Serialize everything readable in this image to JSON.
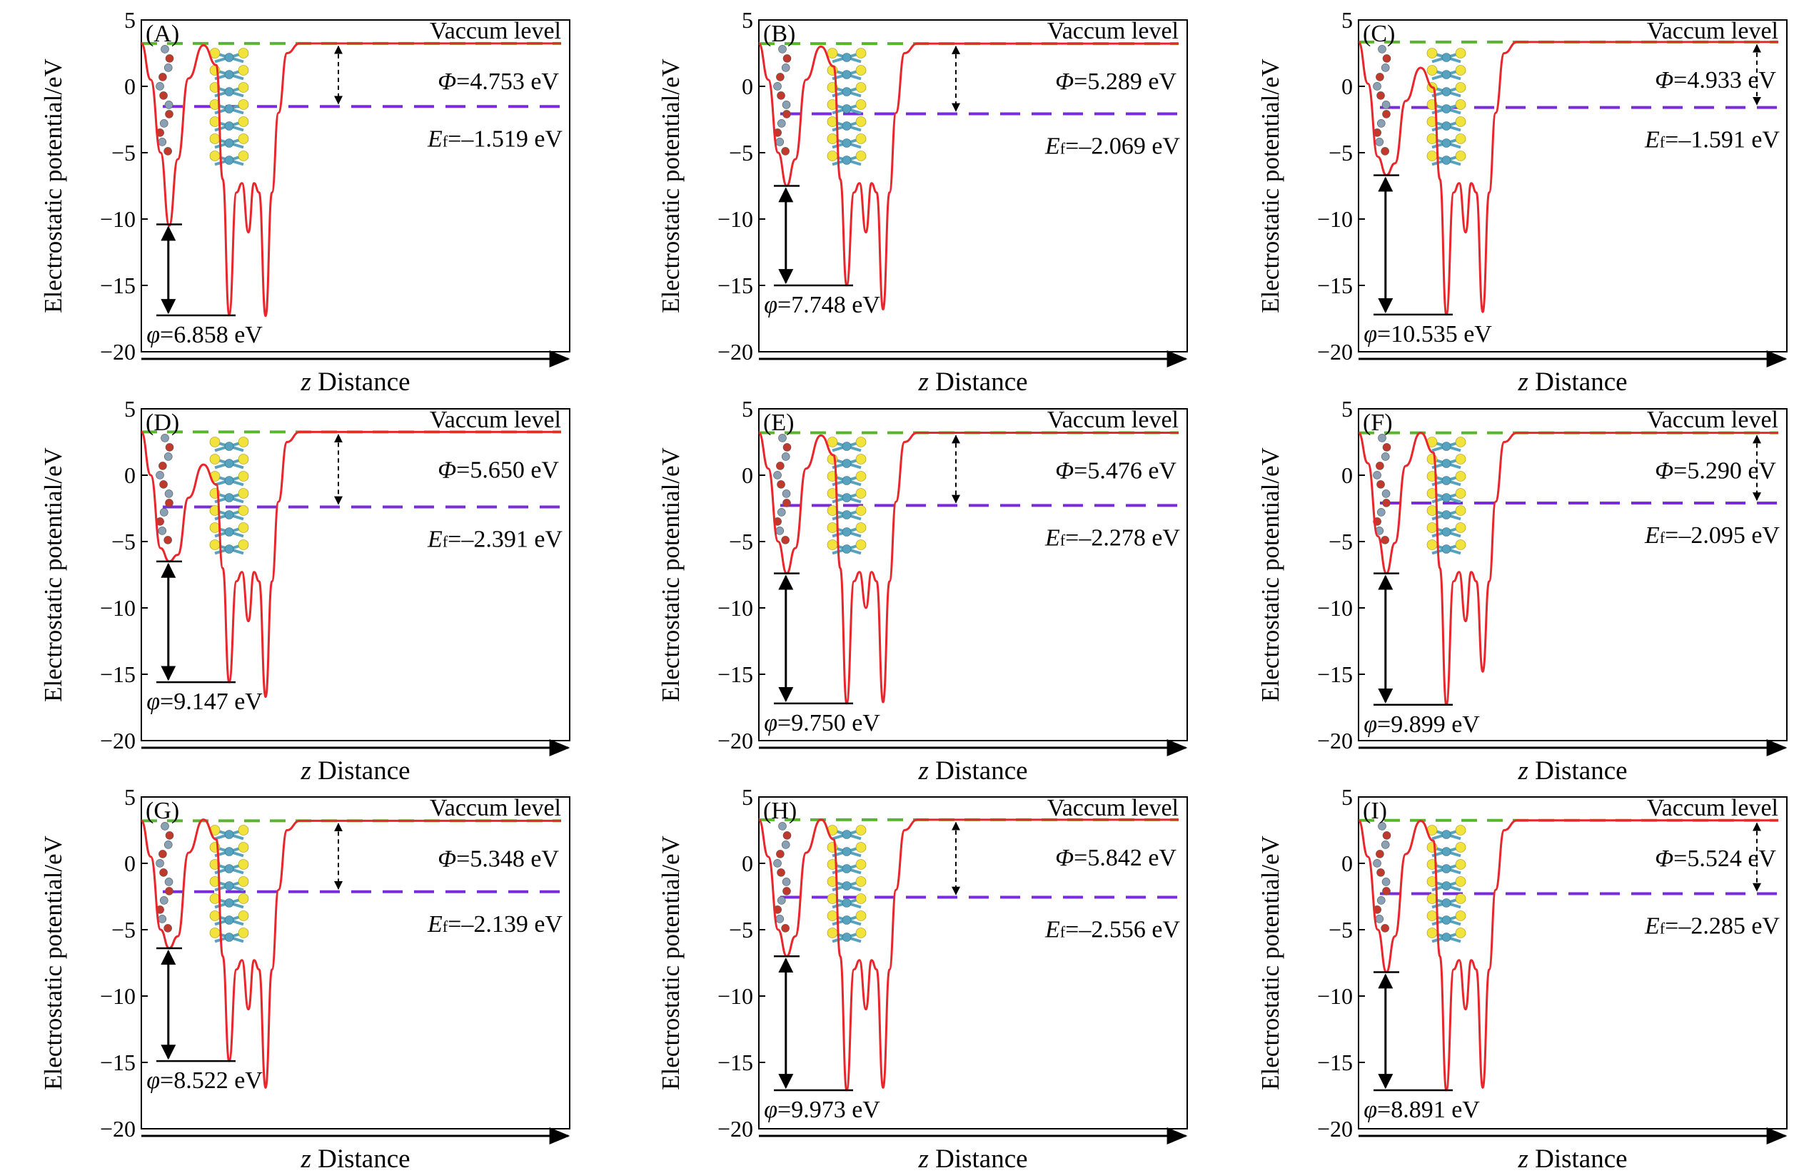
{
  "figure": {
    "y_axis_label": "Electrostatic potential/eV",
    "x_axis_label_prefix": "z",
    "x_axis_label": "Distance",
    "vacuum_label": "Vaccum level",
    "phi_label": "Φ",
    "ef_label": "E",
    "ef_subscript": "f",
    "wf_label": "φ",
    "unit": "eV"
  },
  "colors": {
    "potential_curve": "#e8262b",
    "vacuum_line": "#5ab52e",
    "fermi_line": "#7a2bdb",
    "axis": "#000000",
    "atom_carbon": "#8aa1b5",
    "atom_oxygen": "#c0392b",
    "atom_metal": "#57a3bf",
    "atom_sulfur": "#f1e23c"
  },
  "chart_data": [
    {
      "type": "line",
      "panel": "(A)",
      "title": "",
      "xlabel": "z Distance",
      "ylabel": "Electrostatic potential/eV",
      "ylim": [
        -20,
        5
      ],
      "yticks": [
        5,
        0,
        -5,
        -10,
        -15,
        -20
      ],
      "series": [
        {
          "name": "Electrostatic potential",
          "vacuum_level_eV": 3.234,
          "min_left_eV": -10.5,
          "min1_eV": -17.2,
          "mid_eV": -11.0,
          "min2_eV": -17.3,
          "bump_eV": 3.1,
          "shoulder_eV": -5.0
        }
      ],
      "phi": "4.753",
      "ef": "–1.519",
      "wf": "6.858",
      "vacuum": 3.234,
      "fermi": -1.519,
      "wf_top": -10.4,
      "wf_bottom": -17.26,
      "wf_floor": -17.26
    },
    {
      "type": "line",
      "panel": "(B)",
      "title": "",
      "xlabel": "z Distance",
      "ylabel": "Electrostatic potential/eV",
      "ylim": [
        -20,
        5
      ],
      "yticks": [
        5,
        0,
        -5,
        -10,
        -15,
        -20
      ],
      "series": [
        {
          "name": "Electrostatic potential",
          "vacuum_level_eV": 3.22,
          "min_left_eV": -7.5,
          "min1_eV": -15.0,
          "mid_eV": -11.0,
          "min2_eV": -16.8,
          "bump_eV": 3.0,
          "shoulder_eV": -5.0
        }
      ],
      "phi": "5.289",
      "ef": "–2.069",
      "wf": "7.748",
      "vacuum": 3.22,
      "fermi": -2.069,
      "wf_top": -7.5,
      "wf_bottom": -15.25,
      "wf_floor": -15.0
    },
    {
      "type": "line",
      "panel": "(C)",
      "title": "",
      "xlabel": "z Distance",
      "ylabel": "Electrostatic potential/eV",
      "ylim": [
        -20,
        5
      ],
      "yticks": [
        5,
        0,
        -5,
        -10,
        -15,
        -20
      ],
      "series": [
        {
          "name": "Electrostatic potential",
          "vacuum_level_eV": 3.342,
          "min_left_eV": -6.7,
          "min1_eV": -17.2,
          "mid_eV": -11.0,
          "min2_eV": -17.0,
          "bump_eV": 1.4,
          "shoulder_eV": -5.3
        }
      ],
      "phi": "4.933",
      "ef": "–1.591",
      "wf": "10.535",
      "vacuum": 3.342,
      "fermi": -1.591,
      "wf_top": -6.7,
      "wf_bottom": -17.235,
      "wf_floor": -17.2
    },
    {
      "type": "line",
      "panel": "(D)",
      "title": "",
      "xlabel": "z Distance",
      "ylabel": "Electrostatic potential/eV",
      "ylim": [
        -20,
        5
      ],
      "yticks": [
        5,
        0,
        -5,
        -10,
        -15,
        -20
      ],
      "series": [
        {
          "name": "Electrostatic potential",
          "vacuum_level_eV": 3.259,
          "min_left_eV": -6.5,
          "min1_eV": -15.6,
          "mid_eV": -11.0,
          "min2_eV": -16.7,
          "bump_eV": 0.8,
          "shoulder_eV": -5.5
        }
      ],
      "phi": "5.650",
      "ef": "–2.391",
      "wf": "9.147",
      "vacuum": 3.259,
      "fermi": -2.391,
      "wf_top": -6.5,
      "wf_bottom": -15.647,
      "wf_floor": -15.6
    },
    {
      "type": "line",
      "panel": "(E)",
      "title": "",
      "xlabel": "z Distance",
      "ylabel": "Electrostatic potential/eV",
      "ylim": [
        -20,
        5
      ],
      "yticks": [
        5,
        0,
        -5,
        -10,
        -15,
        -20
      ],
      "series": [
        {
          "name": "Electrostatic potential",
          "vacuum_level_eV": 3.198,
          "min_left_eV": -7.4,
          "min1_eV": -17.2,
          "mid_eV": -10.0,
          "min2_eV": -17.1,
          "bump_eV": 3.0,
          "shoulder_eV": -5.0
        }
      ],
      "phi": "5.476",
      "ef": "–2.278",
      "wf": "9.750",
      "vacuum": 3.198,
      "fermi": -2.278,
      "wf_top": -7.4,
      "wf_bottom": -17.15,
      "wf_floor": -17.2
    },
    {
      "type": "line",
      "panel": "(F)",
      "title": "",
      "xlabel": "z Distance",
      "ylabel": "Electrostatic potential/eV",
      "ylim": [
        -20,
        5
      ],
      "yticks": [
        5,
        0,
        -5,
        -10,
        -15,
        -20
      ],
      "series": [
        {
          "name": "Electrostatic potential",
          "vacuum_level_eV": 3.195,
          "min_left_eV": -7.4,
          "min1_eV": -17.3,
          "mid_eV": -11.0,
          "min2_eV": -14.8,
          "bump_eV": 3.2,
          "shoulder_eV": -4.6
        }
      ],
      "phi": "5.290",
      "ef": "–2.095",
      "wf": "9.899",
      "vacuum": 3.195,
      "fermi": -2.095,
      "wf_top": -7.4,
      "wf_bottom": -17.299,
      "wf_floor": -17.3
    },
    {
      "type": "line",
      "panel": "(G)",
      "title": "",
      "xlabel": "z Distance",
      "ylabel": "Electrostatic potential/eV",
      "ylim": [
        -20,
        5
      ],
      "yticks": [
        5,
        0,
        -5,
        -10,
        -15,
        -20
      ],
      "series": [
        {
          "name": "Electrostatic potential",
          "vacuum_level_eV": 3.209,
          "min_left_eV": -6.4,
          "min1_eV": -14.9,
          "mid_eV": -11.0,
          "min2_eV": -16.9,
          "bump_eV": 3.3,
          "shoulder_eV": -5.0
        }
      ],
      "phi": "5.348",
      "ef": "–2.139",
      "wf": "8.522",
      "vacuum": 3.209,
      "fermi": -2.139,
      "wf_top": -6.4,
      "wf_bottom": -14.922,
      "wf_floor": -14.9
    },
    {
      "type": "line",
      "panel": "(H)",
      "title": "",
      "xlabel": "z Distance",
      "ylabel": "Electrostatic potential/eV",
      "ylim": [
        -20,
        5
      ],
      "yticks": [
        5,
        0,
        -5,
        -10,
        -15,
        -20
      ],
      "series": [
        {
          "name": "Electrostatic potential",
          "vacuum_level_eV": 3.286,
          "min_left_eV": -7.0,
          "min1_eV": -17.1,
          "mid_eV": -11.0,
          "min2_eV": -16.9,
          "bump_eV": 3.3,
          "shoulder_eV": -5.0
        }
      ],
      "phi": "5.842",
      "ef": "–2.556",
      "wf": "9.973",
      "vacuum": 3.286,
      "fermi": -2.556,
      "wf_top": -7.0,
      "wf_bottom": -16.973,
      "wf_floor": -17.1
    },
    {
      "type": "line",
      "panel": "(I)",
      "title": "",
      "xlabel": "z Distance",
      "ylabel": "Electrostatic potential/eV",
      "ylim": [
        -20,
        5
      ],
      "yticks": [
        5,
        0,
        -5,
        -10,
        -15,
        -20
      ],
      "series": [
        {
          "name": "Electrostatic potential",
          "vacuum_level_eV": 3.239,
          "min_left_eV": -8.2,
          "min1_eV": -17.1,
          "mid_eV": -11.0,
          "min2_eV": -16.9,
          "bump_eV": 3.2,
          "shoulder_eV": -5.0
        }
      ],
      "phi": "5.524",
      "ef": "–2.285",
      "wf": "8.891",
      "vacuum": 3.239,
      "fermi": -2.285,
      "wf_top": -8.2,
      "wf_bottom": -17.091,
      "wf_floor": -17.1
    }
  ]
}
